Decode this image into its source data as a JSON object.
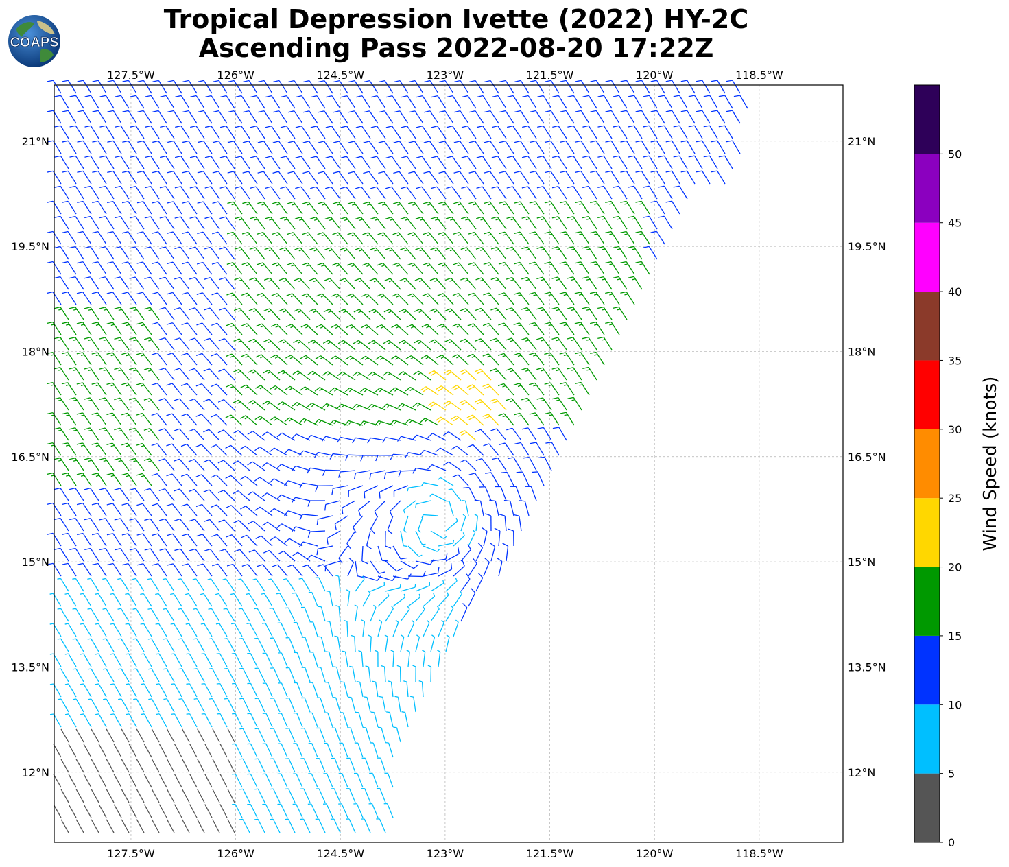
{
  "title": {
    "line1": "Tropical Depression Ivette (2022) HY-2C",
    "line2": "Ascending Pass 2022-08-20 17:22Z"
  },
  "logo": {
    "text": "COAPS",
    "icon": "globe-logo-icon"
  },
  "map": {
    "lon_range": [
      -128.6,
      -117.3
    ],
    "lat_range": [
      11.0,
      21.8
    ],
    "lon_ticks": [
      {
        "value": -127.5,
        "label": "127.5°W"
      },
      {
        "value": -126,
        "label": "126°W"
      },
      {
        "value": -124.5,
        "label": "124.5°W"
      },
      {
        "value": -123,
        "label": "123°W"
      },
      {
        "value": -121.5,
        "label": "121.5°W"
      },
      {
        "value": -120,
        "label": "120°W"
      },
      {
        "value": -118.5,
        "label": "118.5°W"
      }
    ],
    "lat_ticks": [
      {
        "value": 21,
        "label": "21°N"
      },
      {
        "value": 19.5,
        "label": "19.5°N"
      },
      {
        "value": 18,
        "label": "18°N"
      },
      {
        "value": 16.5,
        "label": "16.5°N"
      },
      {
        "value": 15,
        "label": "15°N"
      },
      {
        "value": 13.5,
        "label": "13.5°N"
      },
      {
        "value": 12,
        "label": "12°N"
      }
    ],
    "grid": true,
    "storm_center": {
      "lon": -123.1,
      "lat": 15.6
    }
  },
  "colorbar": {
    "label": "Wind Speed (knots)",
    "bins": [
      {
        "from": 0,
        "to": 5,
        "color": "#555555"
      },
      {
        "from": 5,
        "to": 10,
        "color": "#00bfff"
      },
      {
        "from": 10,
        "to": 15,
        "color": "#0033ff"
      },
      {
        "from": 15,
        "to": 20,
        "color": "#009900"
      },
      {
        "from": 20,
        "to": 25,
        "color": "#ffd700"
      },
      {
        "from": 25,
        "to": 30,
        "color": "#ff8c00"
      },
      {
        "from": 30,
        "to": 35,
        "color": "#ff0000"
      },
      {
        "from": 35,
        "to": 40,
        "color": "#8b3a2a"
      },
      {
        "from": 40,
        "to": 45,
        "color": "#ff00ff"
      },
      {
        "from": 45,
        "to": 50,
        "color": "#8b00bf"
      },
      {
        "from": 50,
        "to": 55,
        "color": "#2e0059"
      }
    ],
    "ticks": [
      0,
      5,
      10,
      15,
      20,
      25,
      30,
      35,
      40,
      45,
      50
    ]
  }
}
